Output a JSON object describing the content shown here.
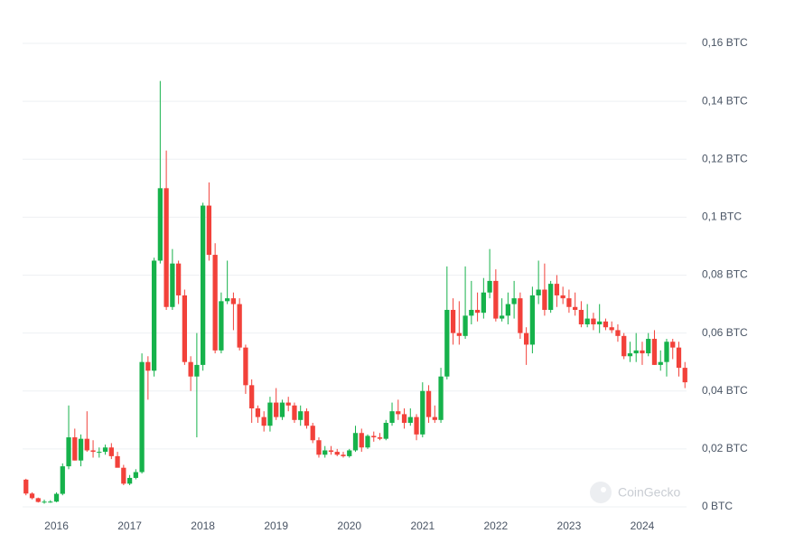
{
  "chart_data": {
    "type": "candlestick",
    "watermark": "CoinGecko",
    "up_color": "#16b24b",
    "down_color": "#f2413a",
    "x": [
      "2015-08",
      "2015-09",
      "2015-10",
      "2015-11",
      "2015-12",
      "2016-01",
      "2016-02",
      "2016-03",
      "2016-04",
      "2016-05",
      "2016-06",
      "2016-07",
      "2016-08",
      "2016-09",
      "2016-10",
      "2016-11",
      "2016-12",
      "2017-01",
      "2017-02",
      "2017-03",
      "2017-04",
      "2017-05",
      "2017-06",
      "2017-07",
      "2017-08",
      "2017-09",
      "2017-10",
      "2017-11",
      "2017-12",
      "2018-01",
      "2018-02",
      "2018-03",
      "2018-04",
      "2018-05",
      "2018-06",
      "2018-07",
      "2018-08",
      "2018-09",
      "2018-10",
      "2018-11",
      "2018-12",
      "2019-01",
      "2019-02",
      "2019-03",
      "2019-04",
      "2019-05",
      "2019-06",
      "2019-07",
      "2019-08",
      "2019-09",
      "2019-10",
      "2019-11",
      "2019-12",
      "2020-01",
      "2020-02",
      "2020-03",
      "2020-04",
      "2020-05",
      "2020-06",
      "2020-07",
      "2020-08",
      "2020-09",
      "2020-10",
      "2020-11",
      "2020-12",
      "2021-01",
      "2021-02",
      "2021-03",
      "2021-04",
      "2021-05",
      "2021-06",
      "2021-07",
      "2021-08",
      "2021-09",
      "2021-10",
      "2021-11",
      "2021-12",
      "2022-01",
      "2022-02",
      "2022-03",
      "2022-04",
      "2022-05",
      "2022-06",
      "2022-07",
      "2022-08",
      "2022-09",
      "2022-10",
      "2022-11",
      "2022-12",
      "2023-01",
      "2023-02",
      "2023-03",
      "2023-04",
      "2023-05",
      "2023-06",
      "2023-07",
      "2023-08",
      "2023-09",
      "2023-10",
      "2023-11",
      "2023-12",
      "2024-01",
      "2024-02",
      "2024-03",
      "2024-04",
      "2024-05",
      "2024-06",
      "2024-07",
      "2024-08"
    ],
    "open": [
      0.0094,
      0.0046,
      0.003,
      0.0017,
      0.0018,
      0.0018,
      0.0045,
      0.014,
      0.024,
      0.016,
      0.0235,
      0.0195,
      0.019,
      0.019,
      0.0205,
      0.0175,
      0.0135,
      0.008,
      0.01,
      0.012,
      0.05,
      0.047,
      0.085,
      0.11,
      0.069,
      0.084,
      0.073,
      0.05,
      0.045,
      0.049,
      0.104,
      0.087,
      0.054,
      0.071,
      0.072,
      0.07,
      0.055,
      0.042,
      0.034,
      0.031,
      0.028,
      0.036,
      0.031,
      0.036,
      0.035,
      0.03,
      0.033,
      0.028,
      0.023,
      0.018,
      0.0195,
      0.019,
      0.018,
      0.0175,
      0.0195,
      0.0255,
      0.0205,
      0.0245,
      0.024,
      0.0235,
      0.029,
      0.033,
      0.032,
      0.029,
      0.031,
      0.025,
      0.04,
      0.031,
      0.03,
      0.045,
      0.068,
      0.06,
      0.059,
      0.066,
      0.068,
      0.067,
      0.074,
      0.078,
      0.065,
      0.066,
      0.07,
      0.072,
      0.06,
      0.056,
      0.073,
      0.075,
      0.068,
      0.077,
      0.073,
      0.072,
      0.069,
      0.068,
      0.063,
      0.065,
      0.063,
      0.064,
      0.062,
      0.061,
      0.059,
      0.052,
      0.053,
      0.054,
      0.053,
      0.058,
      0.049,
      0.05,
      0.057,
      0.055,
      0.048
    ],
    "high": [
      0.0097,
      0.005,
      0.0032,
      0.0025,
      0.0023,
      0.005,
      0.015,
      0.035,
      0.027,
      0.025,
      0.033,
      0.023,
      0.0205,
      0.0215,
      0.022,
      0.019,
      0.0145,
      0.011,
      0.013,
      0.053,
      0.052,
      0.086,
      0.147,
      0.123,
      0.089,
      0.085,
      0.075,
      0.052,
      0.06,
      0.105,
      0.112,
      0.091,
      0.074,
      0.085,
      0.074,
      0.072,
      0.056,
      0.044,
      0.035,
      0.033,
      0.038,
      0.041,
      0.037,
      0.038,
      0.036,
      0.035,
      0.034,
      0.029,
      0.024,
      0.021,
      0.021,
      0.02,
      0.019,
      0.02,
      0.028,
      0.027,
      0.025,
      0.026,
      0.0255,
      0.03,
      0.036,
      0.037,
      0.034,
      0.034,
      0.032,
      0.043,
      0.042,
      0.035,
      0.048,
      0.083,
      0.072,
      0.071,
      0.083,
      0.078,
      0.074,
      0.079,
      0.089,
      0.082,
      0.072,
      0.074,
      0.078,
      0.074,
      0.062,
      0.076,
      0.085,
      0.084,
      0.078,
      0.08,
      0.076,
      0.075,
      0.074,
      0.071,
      0.07,
      0.067,
      0.07,
      0.065,
      0.064,
      0.063,
      0.06,
      0.057,
      0.06,
      0.057,
      0.06,
      0.061,
      0.054,
      0.058,
      0.058,
      0.057,
      0.05
    ],
    "low": [
      0.004,
      0.0026,
      0.0015,
      0.0011,
      0.0014,
      0.0016,
      0.004,
      0.013,
      0.016,
      0.014,
      0.019,
      0.017,
      0.017,
      0.018,
      0.0165,
      0.014,
      0.0075,
      0.0075,
      0.0095,
      0.0115,
      0.037,
      0.045,
      0.084,
      0.068,
      0.068,
      0.07,
      0.049,
      0.04,
      0.024,
      0.047,
      0.085,
      0.053,
      0.053,
      0.07,
      0.061,
      0.054,
      0.039,
      0.029,
      0.029,
      0.026,
      0.026,
      0.03,
      0.03,
      0.033,
      0.029,
      0.028,
      0.027,
      0.022,
      0.017,
      0.017,
      0.018,
      0.0175,
      0.017,
      0.017,
      0.019,
      0.019,
      0.02,
      0.0225,
      0.023,
      0.023,
      0.028,
      0.03,
      0.027,
      0.028,
      0.023,
      0.024,
      0.029,
      0.029,
      0.029,
      0.044,
      0.056,
      0.056,
      0.058,
      0.063,
      0.064,
      0.065,
      0.072,
      0.064,
      0.064,
      0.063,
      0.065,
      0.058,
      0.049,
      0.053,
      0.07,
      0.066,
      0.067,
      0.069,
      0.07,
      0.067,
      0.066,
      0.062,
      0.062,
      0.061,
      0.06,
      0.061,
      0.06,
      0.057,
      0.051,
      0.05,
      0.05,
      0.049,
      0.052,
      0.049,
      0.047,
      0.045,
      0.051,
      0.045,
      0.041
    ],
    "close": [
      0.0046,
      0.003,
      0.0017,
      0.0018,
      0.0018,
      0.0045,
      0.014,
      0.024,
      0.016,
      0.0235,
      0.0195,
      0.019,
      0.019,
      0.0205,
      0.0175,
      0.0135,
      0.008,
      0.01,
      0.012,
      0.05,
      0.047,
      0.085,
      0.11,
      0.069,
      0.084,
      0.073,
      0.05,
      0.045,
      0.049,
      0.104,
      0.087,
      0.054,
      0.071,
      0.072,
      0.07,
      0.055,
      0.042,
      0.034,
      0.031,
      0.028,
      0.036,
      0.031,
      0.036,
      0.035,
      0.03,
      0.033,
      0.028,
      0.023,
      0.018,
      0.0195,
      0.019,
      0.018,
      0.0175,
      0.0195,
      0.0255,
      0.0205,
      0.0245,
      0.024,
      0.0235,
      0.029,
      0.033,
      0.032,
      0.029,
      0.031,
      0.025,
      0.04,
      0.031,
      0.03,
      0.045,
      0.068,
      0.06,
      0.059,
      0.066,
      0.068,
      0.067,
      0.074,
      0.078,
      0.065,
      0.066,
      0.07,
      0.072,
      0.06,
      0.056,
      0.073,
      0.075,
      0.068,
      0.077,
      0.073,
      0.072,
      0.069,
      0.068,
      0.063,
      0.065,
      0.063,
      0.064,
      0.062,
      0.061,
      0.059,
      0.052,
      0.053,
      0.054,
      0.053,
      0.058,
      0.049,
      0.05,
      0.057,
      0.055,
      0.048,
      0.043
    ],
    "xlim": [
      "2015-07",
      "2024-09"
    ],
    "xticks": [
      {
        "value": "2016-01",
        "label": "2016"
      },
      {
        "value": "2017-01",
        "label": "2017"
      },
      {
        "value": "2018-01",
        "label": "2018"
      },
      {
        "value": "2019-01",
        "label": "2019"
      },
      {
        "value": "2020-01",
        "label": "2020"
      },
      {
        "value": "2021-01",
        "label": "2021"
      },
      {
        "value": "2022-01",
        "label": "2022"
      },
      {
        "value": "2023-01",
        "label": "2023"
      },
      {
        "value": "2024-01",
        "label": "2024"
      }
    ],
    "ylim": [
      0,
      0.16
    ],
    "yticks": [
      {
        "value": 0,
        "label": "0 BTC"
      },
      {
        "value": 0.02,
        "label": "0,02 BTC"
      },
      {
        "value": 0.04,
        "label": "0,04 BTC"
      },
      {
        "value": 0.06,
        "label": "0,06 BTC"
      },
      {
        "value": 0.08,
        "label": "0,08 BTC"
      },
      {
        "value": 0.1,
        "label": "0,1 BTC"
      },
      {
        "value": 0.12,
        "label": "0,12 BTC"
      },
      {
        "value": 0.14,
        "label": "0,14 BTC"
      },
      {
        "value": 0.16,
        "label": "0,16 BTC"
      }
    ],
    "grid": true
  }
}
